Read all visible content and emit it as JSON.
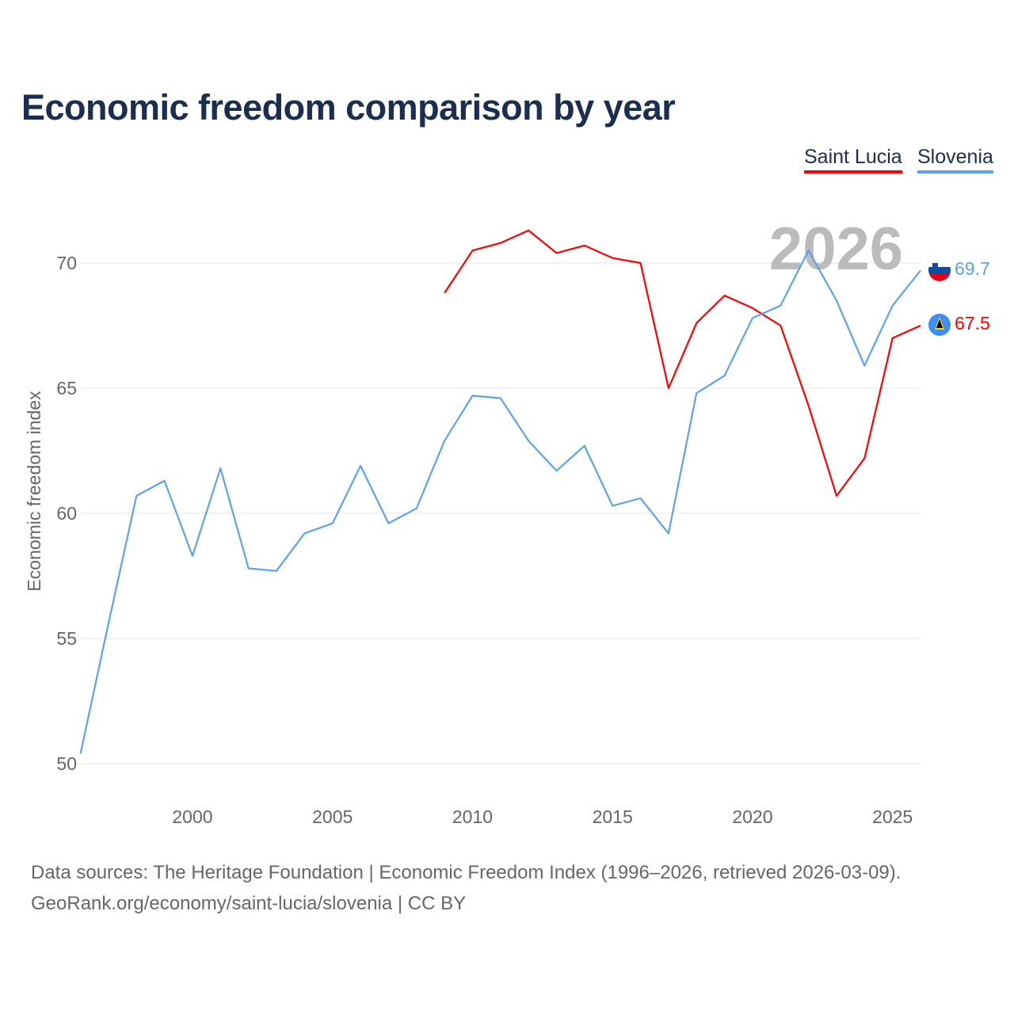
{
  "title": "Economic freedom comparison by year",
  "legend": [
    "Saint Lucia",
    "Slovenia"
  ],
  "year_watermark": "2026",
  "footer": {
    "line1": "Data sources: The Heritage Foundation | Economic Freedom Index (1996–2026, retrieved 2026-03-09).",
    "line2": "GeoRank.org/economy/saint-lucia/slovenia | CC BY"
  },
  "end_labels": {
    "slovenia": "69.7",
    "saint_lucia": "67.5"
  },
  "chart_data": {
    "type": "line",
    "title": "Economic freedom comparison by year",
    "xlabel": "",
    "ylabel": "Economic freedom index",
    "xlim": [
      1996,
      2026
    ],
    "ylim": [
      50,
      72
    ],
    "x_ticks": [
      2000,
      2005,
      2010,
      2015,
      2020,
      2025
    ],
    "y_ticks": [
      50,
      55,
      60,
      65,
      70
    ],
    "grid": true,
    "legend_position": "top-right",
    "series": [
      {
        "name": "Saint Lucia",
        "color": "#ff0000",
        "x": [
          2009,
          2010,
          2011,
          2012,
          2013,
          2014,
          2015,
          2016,
          2017,
          2018,
          2019,
          2020,
          2021,
          2022,
          2023,
          2024,
          2025,
          2026
        ],
        "values": [
          68.8,
          70.5,
          70.8,
          71.3,
          70.4,
          70.7,
          70.2,
          70.0,
          65.0,
          67.6,
          68.7,
          68.2,
          67.5,
          64.3,
          60.7,
          62.2,
          67.0,
          67.5
        ]
      },
      {
        "name": "Slovenia",
        "color": "#5ba3ef",
        "x": [
          1996,
          1997,
          1998,
          1999,
          2000,
          2001,
          2002,
          2003,
          2004,
          2005,
          2006,
          2007,
          2008,
          2009,
          2010,
          2011,
          2012,
          2013,
          2014,
          2015,
          2016,
          2017,
          2018,
          2019,
          2020,
          2021,
          2022,
          2023,
          2024,
          2025,
          2026
        ],
        "values": [
          50.4,
          55.6,
          60.7,
          61.3,
          58.3,
          61.8,
          57.8,
          57.7,
          59.2,
          59.6,
          61.9,
          59.6,
          60.2,
          62.9,
          64.7,
          64.6,
          62.9,
          61.7,
          62.7,
          60.3,
          60.6,
          59.2,
          64.8,
          65.5,
          67.8,
          68.3,
          70.5,
          68.5,
          65.9,
          68.3,
          69.7
        ]
      }
    ]
  }
}
